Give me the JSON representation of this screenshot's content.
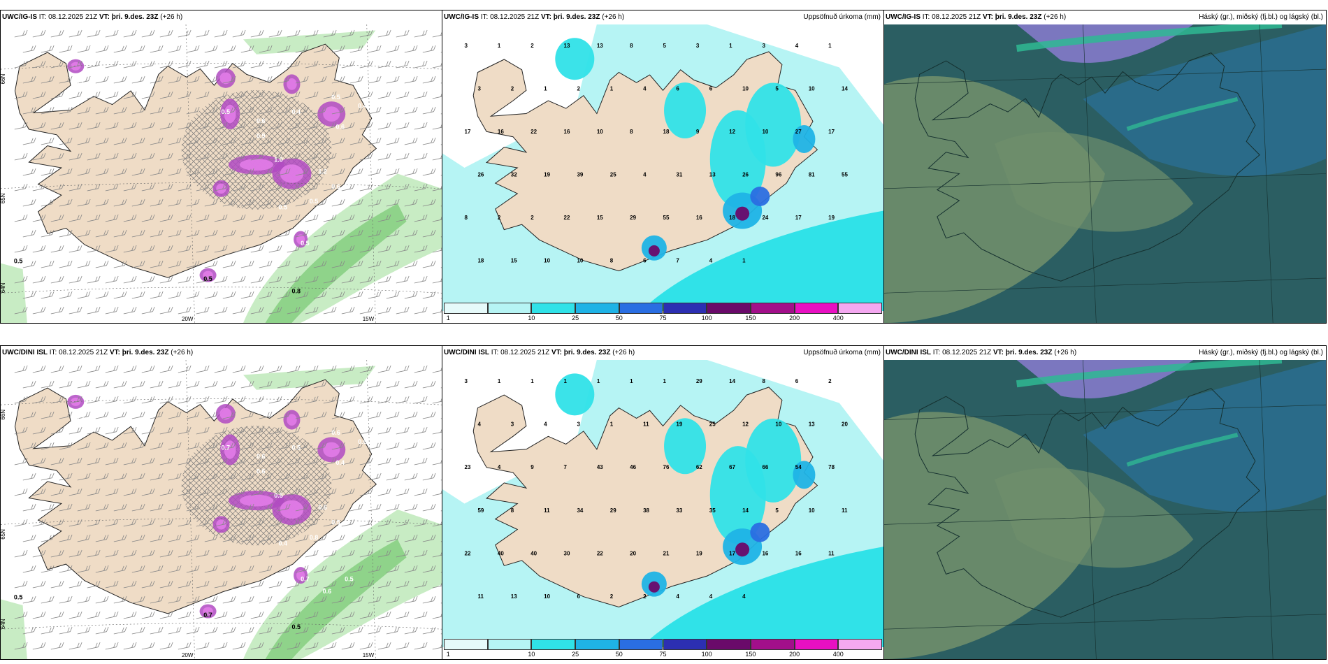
{
  "colors": {
    "land": "#efdcc6",
    "sea": "#ffffff",
    "windbarb": "#888888",
    "precip_green_light": "#c8ecc4",
    "precip_green_mid": "#8fd38a",
    "precip_purple": "#b04ac2",
    "precip_pink": "#e27ce8",
    "cloud_bg": "#2b5e62",
    "cloud_green": "#6f8e6c",
    "cloud_teal": "#2fb893",
    "cloud_blue": "#2a6e94",
    "cloud_violet": "#8a7bd0"
  },
  "rows": [
    {
      "wind": {
        "model": "UWC/IG-IS",
        "it_label": "IT:",
        "it_value": "08.12.2025 21Z",
        "vt_label": "VT:",
        "vt_value": "þri. 9.des. 23Z",
        "lead": "(+26 h)",
        "lat_labels": [
          "66N",
          "65N",
          "64N"
        ],
        "lon_labels": [
          "20W",
          "15W"
        ],
        "contour_labels": [
          "0.1",
          "0.5",
          "0.6",
          "0.9",
          "0.4",
          "0.5",
          "0.6",
          "0.4",
          "1.0",
          "1.2",
          "0.6",
          "0.5",
          "0.5",
          "0.5",
          "0.8",
          "0.5",
          "0.5"
        ]
      },
      "precip": {
        "model": "UWC/IG-IS",
        "it_label": "IT:",
        "it_value": "08.12.2025 21Z",
        "vt_label": "VT:",
        "vt_value": "þri. 9.des. 23Z",
        "lead": "(+26 h)",
        "field_title": "Uppsöfnuð úrkoma (mm)",
        "values": [
          "3",
          "1",
          "2",
          "13",
          "13",
          "8",
          "5",
          "3",
          "1",
          "3",
          "4",
          "1",
          "3",
          "2",
          "1",
          "2",
          "1",
          "4",
          "6",
          "6",
          "10",
          "5",
          "10",
          "14",
          "17",
          "16",
          "22",
          "16",
          "10",
          "8",
          "18",
          "9",
          "12",
          "10",
          "27",
          "17",
          "26",
          "32",
          "19",
          "39",
          "25",
          "4",
          "31",
          "13",
          "26",
          "96",
          "81",
          "55",
          "8",
          "2",
          "2",
          "22",
          "15",
          "29",
          "55",
          "16",
          "18",
          "24",
          "17",
          "19",
          "18",
          "15",
          "10",
          "10",
          "8",
          "6",
          "7",
          "4",
          "1"
        ],
        "colorbar": [
          "1",
          "10",
          "25",
          "50",
          "75",
          "100",
          "150",
          "200",
          "400"
        ]
      },
      "cloud": {
        "model": "UWC/IG-IS",
        "it_label": "IT:",
        "it_value": "08.12.2025 21Z",
        "vt_label": "VT:",
        "vt_value": "þri. 9.des. 23Z",
        "lead": "(+26 h)",
        "field_title": "Háský (gr.), miðský (fj.bl.) og lágský (bl.)"
      }
    },
    {
      "wind": {
        "model": "UWC/DINI ISL",
        "it_label": "IT:",
        "it_value": "08.12.2025 21Z",
        "vt_label": "VT:",
        "vt_value": "þri. 9.des. 23Z",
        "lead": "(+26 h)",
        "lat_labels": [
          "66N",
          "65N",
          "64N"
        ],
        "lon_labels": [
          "20W",
          "15W"
        ],
        "contour_labels": [
          "0.3",
          "0.7",
          "0.6",
          "0.6",
          "0.5",
          "0.6",
          "0.4",
          "0.6",
          "0.5",
          "0.6",
          "0.5",
          "0.8",
          "0.4",
          "0.7",
          "0.5",
          "0.5",
          "0.7",
          "0.6",
          "0.5"
        ]
      },
      "precip": {
        "model": "UWC/DINI ISL",
        "it_label": "IT:",
        "it_value": "08.12.2025 21Z",
        "vt_label": "VT:",
        "vt_value": "þri. 9.des. 23Z",
        "lead": "(+26 h)",
        "field_title": "Uppsöfnuð úrkoma (mm)",
        "values": [
          "3",
          "1",
          "1",
          "1",
          "1",
          "1",
          "1",
          "29",
          "14",
          "8",
          "6",
          "2",
          "4",
          "3",
          "4",
          "3",
          "1",
          "11",
          "19",
          "25",
          "12",
          "10",
          "13",
          "20",
          "23",
          "4",
          "9",
          "7",
          "43",
          "46",
          "76",
          "62",
          "67",
          "66",
          "54",
          "78",
          "59",
          "8",
          "11",
          "34",
          "29",
          "38",
          "33",
          "35",
          "14",
          "5",
          "10",
          "11",
          "22",
          "40",
          "40",
          "30",
          "22",
          "20",
          "21",
          "19",
          "17",
          "16",
          "16",
          "11",
          "11",
          "13",
          "10",
          "6",
          "2",
          "2",
          "4",
          "4",
          "4"
        ],
        "colorbar": [
          "1",
          "10",
          "25",
          "50",
          "75",
          "100",
          "150",
          "200",
          "400"
        ]
      },
      "cloud": {
        "model": "UWC/DINI ISL",
        "it_label": "IT:",
        "it_value": "08.12.2025 21Z",
        "vt_label": "VT:",
        "vt_value": "þri. 9.des. 23Z",
        "lead": "(+26 h)",
        "field_title": "Háský (gr.), miðský (fj.bl.) og lágský (bl.)"
      }
    }
  ]
}
